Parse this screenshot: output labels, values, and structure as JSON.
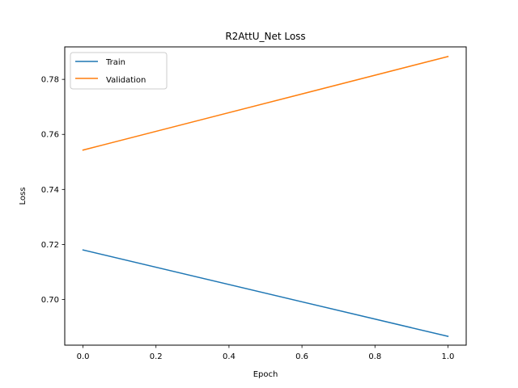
{
  "chart_data": {
    "type": "line",
    "title": "R2AttU_Net Loss",
    "xlabel": "Epoch",
    "ylabel": "Loss",
    "xlim": [
      -0.05,
      1.05
    ],
    "ylim": [
      0.6834,
      0.7918
    ],
    "xticks": [
      0.0,
      0.2,
      0.4,
      0.6,
      0.8,
      1.0
    ],
    "xtick_labels": [
      "0.0",
      "0.2",
      "0.4",
      "0.6",
      "0.8",
      "1.0"
    ],
    "yticks": [
      0.7,
      0.72,
      0.74,
      0.76,
      0.78
    ],
    "ytick_labels": [
      "0.70",
      "0.72",
      "0.74",
      "0.76",
      "0.78"
    ],
    "grid": false,
    "legend_position": "top-left",
    "x": [
      0,
      1
    ],
    "series": [
      {
        "name": "Train",
        "color": "#1f77b4",
        "values": [
          0.718,
          0.6866
        ]
      },
      {
        "name": "Validation",
        "color": "#ff7f0e",
        "values": [
          0.7543,
          0.7883
        ]
      }
    ]
  }
}
